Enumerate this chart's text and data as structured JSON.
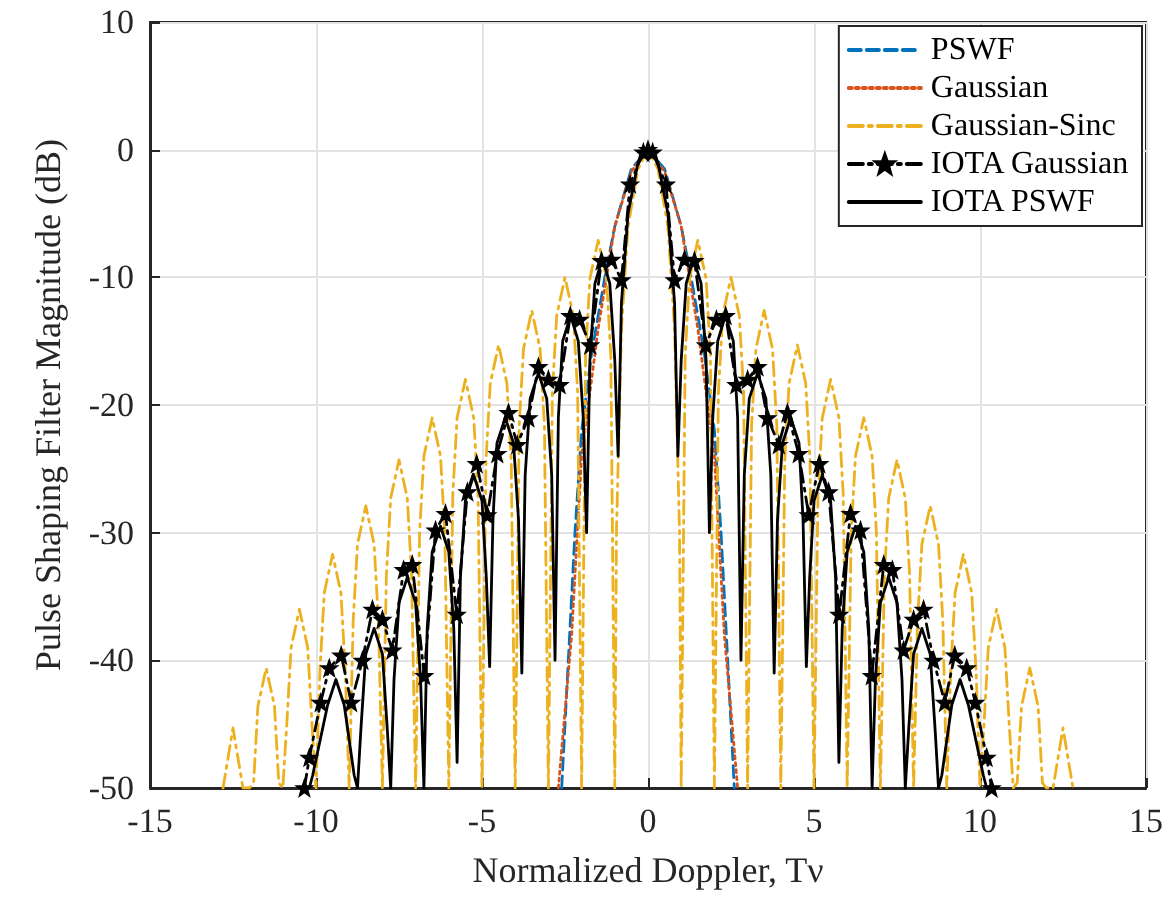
{
  "chart_data": {
    "type": "line",
    "xlabel": "Normalized Doppler, Tν",
    "ylabel": "Pulse Shaping Filter Magnitude (dB)",
    "xlim": [
      -15,
      15
    ],
    "ylim": [
      -50,
      10
    ],
    "xticks": [
      -15,
      -10,
      -5,
      0,
      5,
      10,
      15
    ],
    "yticks": [
      -50,
      -40,
      -30,
      -20,
      -10,
      0,
      10
    ],
    "grid": true,
    "legend": "top right",
    "series": [
      {
        "name": "PSWF",
        "color": "#0072bd",
        "line_style": "dashed",
        "marker": "none",
        "x": [
          -2.6,
          -2.4,
          -2.2,
          -2,
          -1.7,
          -1.3,
          -1,
          -0.5,
          0,
          0.5,
          1,
          1.3,
          1.7,
          2,
          2.2,
          2.4,
          2.6
        ],
        "values": [
          -50,
          -40,
          -30,
          -22,
          -16,
          -10,
          -6,
          -1.5,
          0,
          -1.5,
          -6,
          -10,
          -16,
          -22,
          -30,
          -40,
          -50
        ]
      },
      {
        "name": "Gaussian",
        "color": "#d95319",
        "line_style": "dotted",
        "marker": "none",
        "x": [
          -2.7,
          -2.5,
          -2.3,
          -2,
          -1.5,
          -1,
          -0.5,
          0,
          0.5,
          1,
          1.5,
          2,
          2.3,
          2.5,
          2.7
        ],
        "values": [
          -50,
          -44,
          -38,
          -24,
          -14,
          -6,
          -1.7,
          0,
          -1.7,
          -6,
          -14,
          -24,
          -38,
          -44,
          -50
        ]
      },
      {
        "name": "Gaussian-Sinc",
        "color": "#edb120",
        "line_style": "dashdot",
        "marker": "none",
        "x": [
          -12.8,
          -12.5,
          -12.2,
          -12,
          -11.88,
          -11.75,
          -11.5,
          -11.25,
          -11.12,
          -11,
          -10.88,
          -10.75,
          -10.5,
          -10.25,
          -10.12,
          -10,
          -9.88,
          -9.75,
          -9.5,
          -9.25,
          -9.12,
          -9,
          -8.88,
          -8.75,
          -8.5,
          -8.25,
          -8.12,
          -8,
          -7.88,
          -7.75,
          -7.5,
          -7.25,
          -7.12,
          -7,
          -6.88,
          -6.75,
          -6.5,
          -6.25,
          -6.12,
          -6,
          -5.88,
          -5.75,
          -5.5,
          -5.25,
          -5.12,
          -5,
          -4.88,
          -4.75,
          -4.5,
          -4.25,
          -4.12,
          -4,
          -3.88,
          -3.75,
          -3.5,
          -3.25,
          -3.12,
          -3,
          -2.88,
          -2.75,
          -2.5,
          -2.25,
          -2.12,
          -2,
          -1.88,
          -1.75,
          -1.5,
          -1.25,
          -1.12,
          -1,
          -0.95,
          -0.8,
          -0.6,
          -0.3,
          0,
          0.3,
          0.6,
          0.8,
          0.95,
          1,
          1.12,
          1.25,
          1.5,
          1.75,
          1.88,
          2,
          2.12,
          2.25,
          2.5,
          2.75,
          2.88,
          3,
          3.12,
          3.25,
          3.5,
          3.75,
          3.88,
          4,
          4.12,
          4.25,
          4.5,
          4.75,
          4.88,
          5,
          5.12,
          5.25,
          5.5,
          5.75,
          5.88,
          6,
          6.12,
          6.25,
          6.5,
          6.75,
          6.88,
          7,
          7.12,
          7.25,
          7.5,
          7.75,
          7.88,
          8,
          8.12,
          8.25,
          8.5,
          8.75,
          8.88,
          9,
          9.12,
          9.25,
          9.5,
          9.75,
          9.88,
          10,
          10.12,
          10.25,
          10.5,
          10.75,
          10.88,
          11,
          11.12,
          11.25,
          11.5,
          11.75,
          11.88,
          12,
          12.2,
          12.5,
          12.8
        ],
        "values": [
          -50,
          -45.3,
          -50,
          -50,
          -49.6,
          -43.6,
          -40.6,
          -43.6,
          -49.6,
          -50,
          -45,
          -39,
          -36,
          -39,
          -45,
          -50,
          -40.7,
          -34.7,
          -31.7,
          -34.7,
          -40.7,
          -50,
          -36.9,
          -30.9,
          -27.9,
          -30.9,
          -36.9,
          -50,
          -33.3,
          -27.3,
          -24.3,
          -27.3,
          -33.3,
          -50,
          -30,
          -24,
          -21,
          -24,
          -30,
          -50,
          -27,
          -21,
          -18,
          -21,
          -27,
          -50,
          -24.3,
          -18.3,
          -15.3,
          -18.3,
          -24.3,
          -50,
          -21.6,
          -15.6,
          -12.6,
          -15.6,
          -21.6,
          -50,
          -19,
          -13,
          -10,
          -13,
          -19,
          -50,
          -16.1,
          -10.1,
          -7.1,
          -10.1,
          -16.1,
          -50,
          -30,
          -14,
          -6,
          -1.5,
          0,
          -1.5,
          -6,
          -14,
          -30,
          -50,
          -16.1,
          -10.1,
          -7.1,
          -10.1,
          -16.1,
          -50,
          -19,
          -13,
          -10,
          -13,
          -19,
          -50,
          -21.6,
          -15.6,
          -12.6,
          -15.6,
          -21.6,
          -50,
          -24.3,
          -18.3,
          -15.3,
          -18.3,
          -24.3,
          -50,
          -27,
          -21,
          -18,
          -21,
          -27,
          -50,
          -30,
          -24,
          -21,
          -24,
          -30,
          -50,
          -33.3,
          -27.3,
          -24.3,
          -27.3,
          -33.3,
          -50,
          -36.9,
          -30.9,
          -27.9,
          -30.9,
          -36.9,
          -50,
          -40.7,
          -34.7,
          -31.7,
          -34.7,
          -40.7,
          -50,
          -45,
          -39,
          -36,
          -39,
          -45,
          -50,
          -49.6,
          -43.6,
          -40.6,
          -43.6,
          -49.6,
          -50,
          -50,
          -45.3,
          -50
        ]
      },
      {
        "name": "IOTA Gaussian",
        "color": "#000000",
        "line_style": "dashdot",
        "marker": "star",
        "x": [
          -10.35,
          -10.2,
          -9.86,
          -9.6,
          -9.24,
          -8.94,
          -8.6,
          -8.3,
          -8.0,
          -7.7,
          -7.36,
          -7.1,
          -6.74,
          -6.4,
          -6.1,
          -5.76,
          -5.44,
          -5.16,
          -4.84,
          -4.54,
          -4.2,
          -3.94,
          -3.6,
          -3.3,
          -3.0,
          -2.66,
          -2.34,
          -2.06,
          -1.74,
          -1.4,
          -1.1,
          -0.8,
          -0.54,
          -0.14,
          0,
          0.14,
          0.54,
          0.8,
          1.1,
          1.4,
          1.74,
          2.06,
          2.34,
          2.66,
          3.0,
          3.3,
          3.6,
          3.94,
          4.2,
          4.54,
          4.84,
          5.16,
          5.44,
          5.76,
          6.1,
          6.4,
          6.74,
          7.1,
          7.36,
          7.7,
          8.0,
          8.3,
          8.6,
          8.94,
          9.24,
          9.6,
          9.86,
          10.2,
          10.35
        ],
        "values": [
          -50,
          -47.6,
          -43.3,
          -40.6,
          -39.6,
          -43.3,
          -40,
          -36,
          -36.8,
          -39.2,
          -32.9,
          -32.5,
          -41.2,
          -29.8,
          -28.5,
          -36.4,
          -26.8,
          -24.6,
          -28.6,
          -23.8,
          -20.6,
          -23.1,
          -21,
          -17,
          -18,
          -18.4,
          -13,
          -13.3,
          -15.3,
          -8.7,
          -8.6,
          -10.2,
          -2.7,
          -0.2,
          0,
          -0.2,
          -2.7,
          -10.2,
          -8.6,
          -8.7,
          -15.3,
          -13.3,
          -13,
          -18.4,
          -18,
          -17,
          -21,
          -23.1,
          -20.6,
          -23.8,
          -28.6,
          -24.6,
          -26.8,
          -36.4,
          -28.5,
          -29.8,
          -41.2,
          -32.5,
          -32.9,
          -39.2,
          -36.8,
          -36,
          -40,
          -43.3,
          -39.6,
          -40.6,
          -43.3,
          -47.6,
          -50
        ]
      },
      {
        "name": "IOTA PSWF",
        "color": "#000000",
        "line_style": "solid",
        "marker": "none",
        "x": [
          -10.2,
          -10.1,
          -9.65,
          -9.4,
          -9.15,
          -8.85,
          -8.75,
          -8.65,
          -8.5,
          -8.25,
          -8.0,
          -7.85,
          -7.75,
          -7.65,
          -7.5,
          -7.25,
          -7.0,
          -6.85,
          -6.75,
          -6.65,
          -6.5,
          -6.25,
          -6.0,
          -5.85,
          -5.75,
          -5.65,
          -5.5,
          -5.25,
          -5.0,
          -4.87,
          -4.77,
          -4.67,
          -4.55,
          -4.3,
          -4.05,
          -3.9,
          -3.8,
          -3.7,
          -3.55,
          -3.3,
          -3.05,
          -2.9,
          -2.8,
          -2.7,
          -2.57,
          -2.33,
          -2.1,
          -1.95,
          -1.85,
          -1.75,
          -1.6,
          -1.37,
          -1.15,
          -1.0,
          -0.9,
          -0.8,
          -0.6,
          -0.3,
          0,
          0.3,
          0.6,
          0.8,
          0.9,
          1.0,
          1.15,
          1.37,
          1.6,
          1.75,
          1.85,
          1.95,
          2.1,
          2.33,
          2.57,
          2.7,
          2.8,
          2.9,
          3.05,
          3.3,
          3.55,
          3.7,
          3.8,
          3.9,
          4.05,
          4.3,
          4.55,
          4.67,
          4.77,
          4.87,
          5.0,
          5.25,
          5.5,
          5.65,
          5.75,
          5.85,
          6.0,
          6.25,
          6.5,
          6.65,
          6.75,
          6.85,
          7.0,
          7.25,
          7.5,
          7.65,
          7.75,
          7.85,
          8.0,
          8.25,
          8.5,
          8.65,
          8.75,
          8.85,
          9.15,
          9.4,
          9.65,
          10.1,
          10.2
        ],
        "values": [
          -50,
          -49,
          -43.5,
          -41.5,
          -43.5,
          -49,
          -50,
          -45.5,
          -39.5,
          -37.5,
          -39.5,
          -45.5,
          -50,
          -41.5,
          -35.5,
          -33.5,
          -35.5,
          -41.5,
          -50,
          -37.5,
          -31.5,
          -29.5,
          -31.5,
          -37.5,
          -48,
          -33.5,
          -27.5,
          -25.5,
          -27.5,
          -33.5,
          -40.5,
          -29,
          -23,
          -21,
          -23,
          -29,
          -41,
          -25.5,
          -19.5,
          -17.5,
          -19.5,
          -25.5,
          -40,
          -21,
          -15,
          -13,
          -15,
          -21,
          -30,
          -16.5,
          -10.5,
          -8.5,
          -10.5,
          -16.5,
          -24,
          -12,
          -5,
          -1,
          0,
          -1,
          -5,
          -12,
          -24,
          -16.5,
          -10.5,
          -8.5,
          -10.5,
          -16.5,
          -30,
          -21,
          -15,
          -13,
          -15,
          -21,
          -40,
          -25.5,
          -19.5,
          -17.5,
          -19.5,
          -25.5,
          -41,
          -29,
          -23,
          -21,
          -23,
          -29,
          -40.5,
          -33.5,
          -27.5,
          -25.5,
          -27.5,
          -33.5,
          -48,
          -37.5,
          -31.5,
          -29.5,
          -31.5,
          -37.5,
          -50,
          -41.5,
          -35.5,
          -33.5,
          -35.5,
          -41.5,
          -50,
          -45.5,
          -39.5,
          -37.5,
          -39.5,
          -45.5,
          -50,
          -49,
          -43.5,
          -41.5,
          -43.5,
          -49,
          -50
        ]
      }
    ]
  }
}
